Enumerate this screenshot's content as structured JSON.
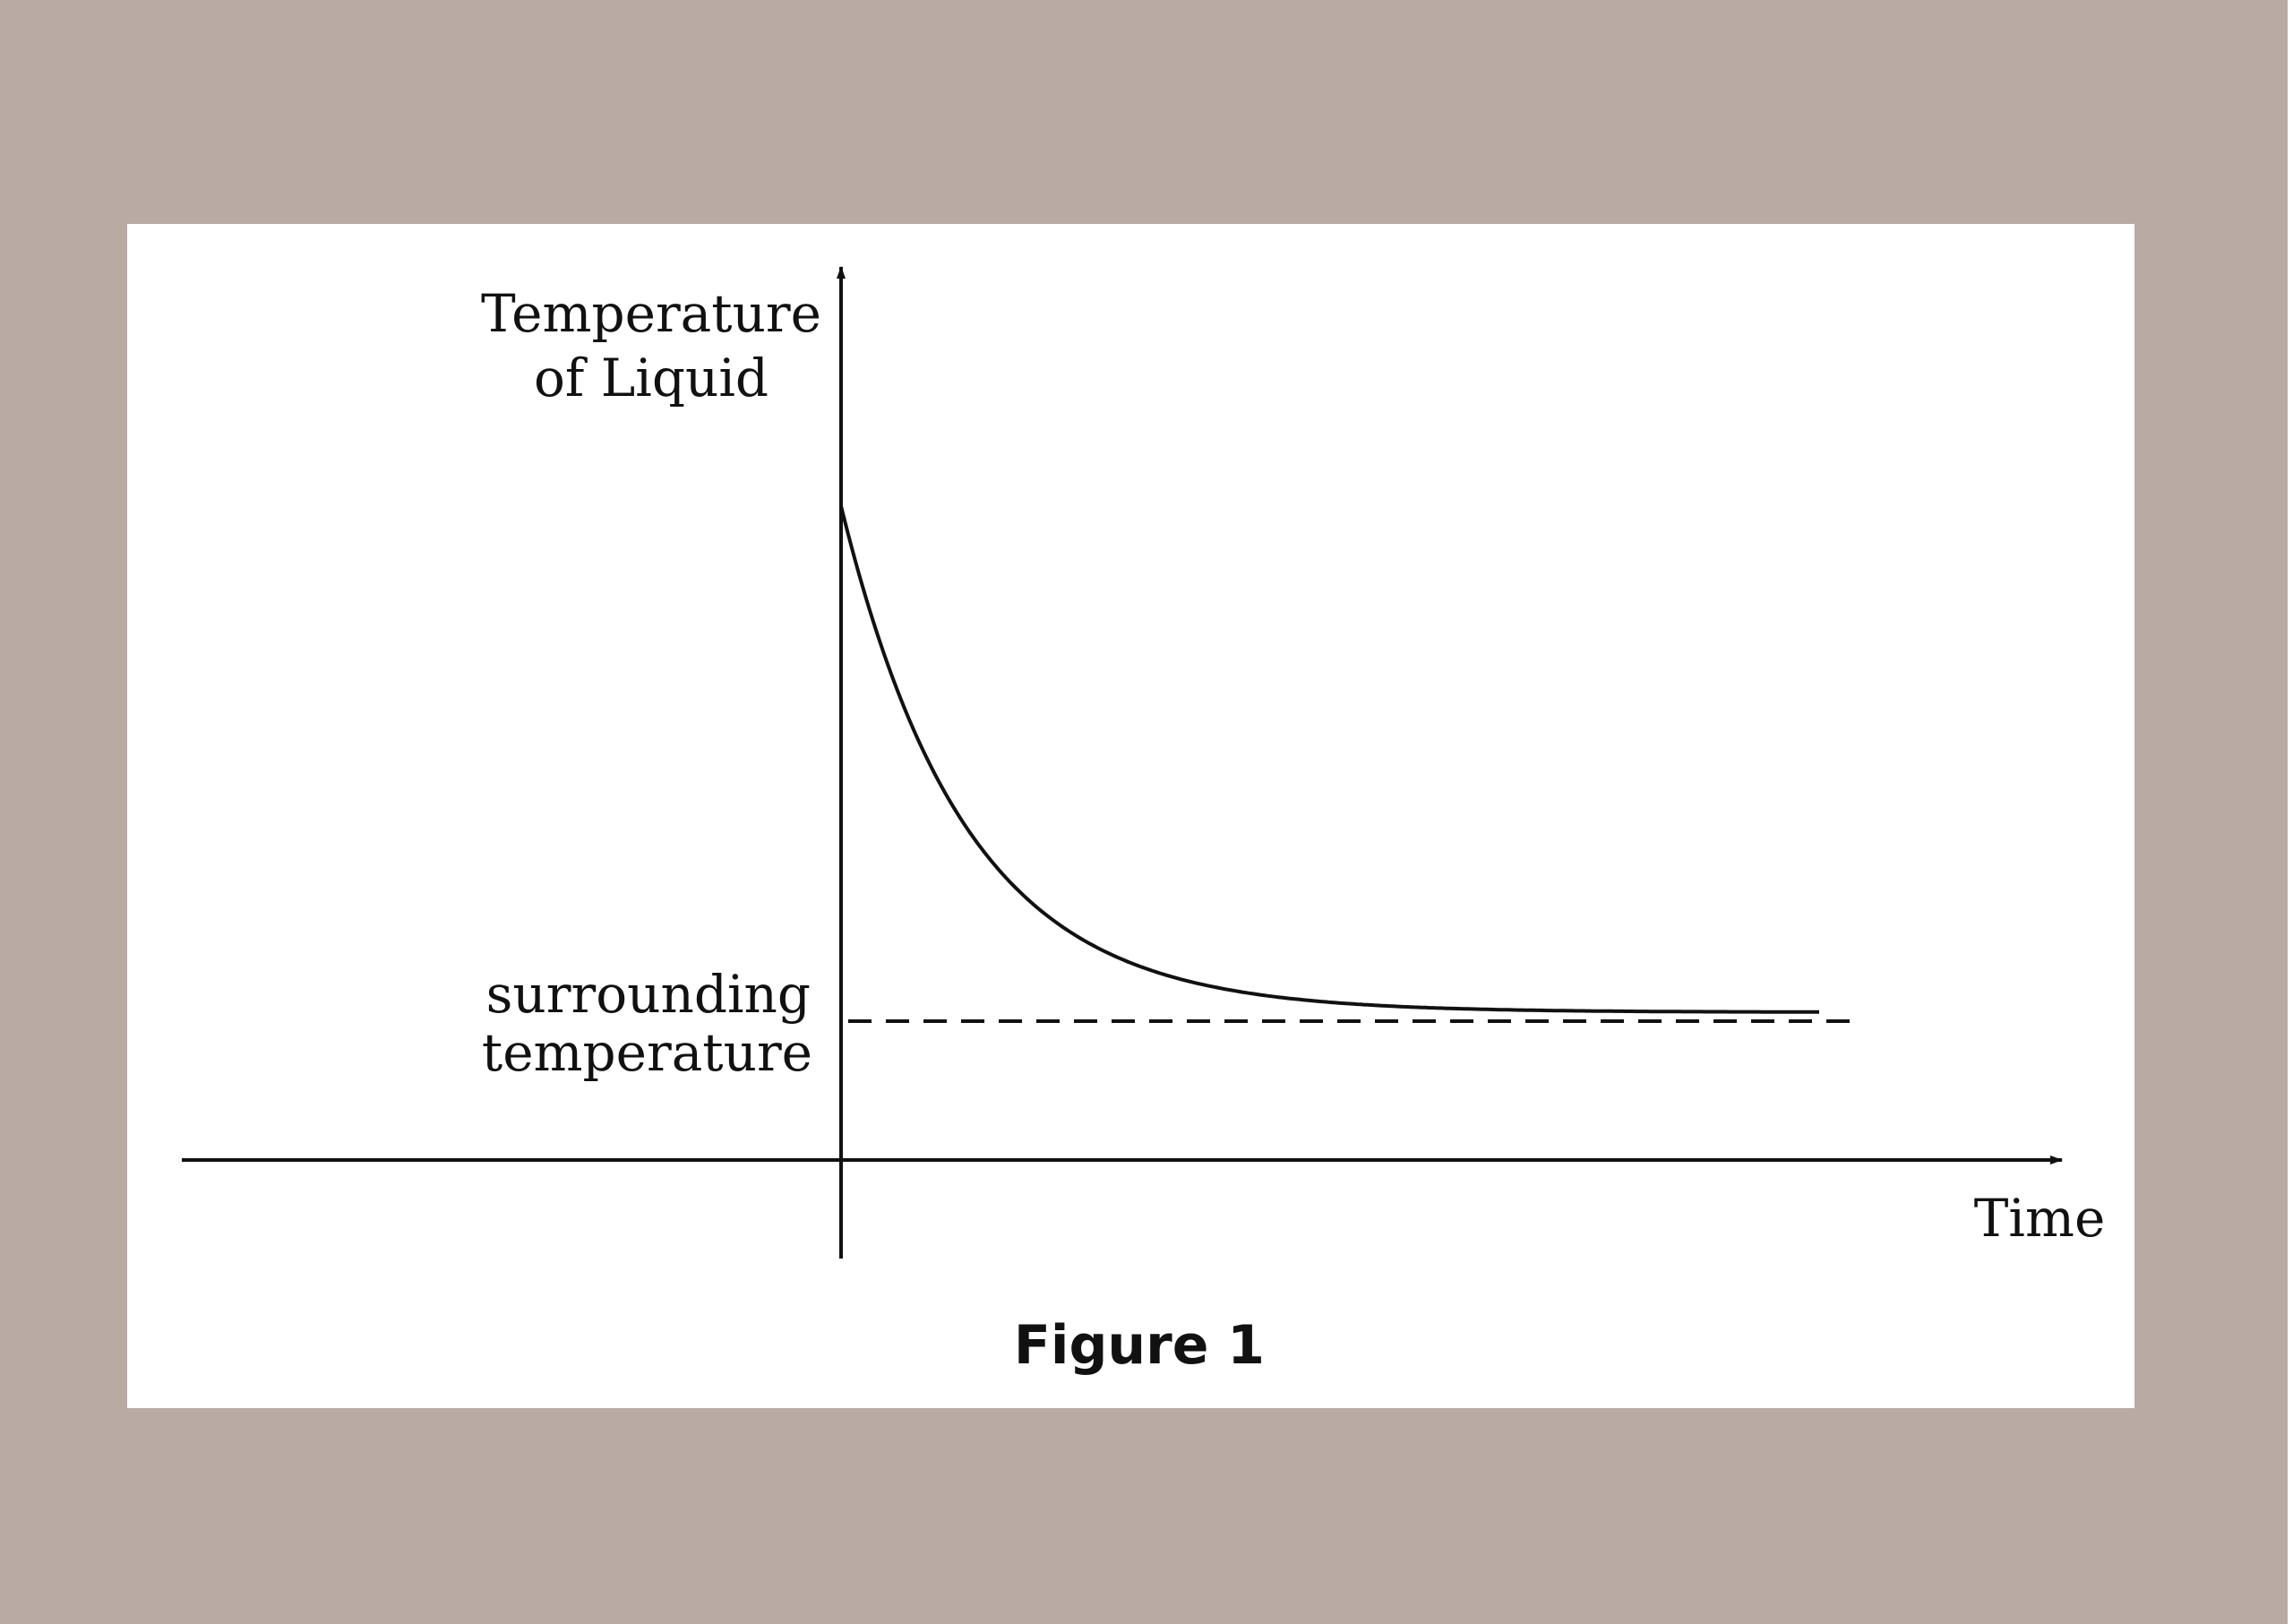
{
  "figure": {
    "caption": "Figure 1",
    "y_axis_label_line1": "Temperature",
    "y_axis_label_line2": "of  Liquid",
    "x_axis_label": "Time",
    "reference_label_line1": "surrounding",
    "reference_label_line2": "temperature"
  },
  "colors": {
    "background": "#b9aaa3",
    "card": "#ffffff",
    "ink": "#111111"
  }
}
